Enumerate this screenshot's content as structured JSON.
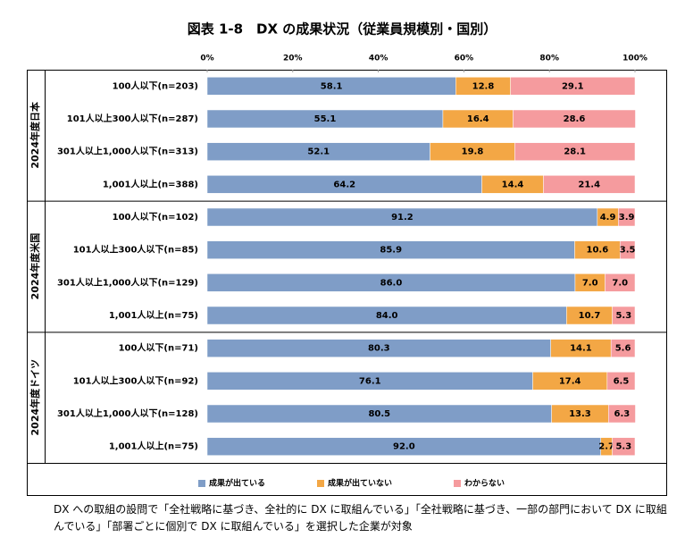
{
  "chart_data": {
    "type": "stacked-barh",
    "title": "図表 1-8　DX の成果状況（従業員規模別・国別）",
    "groups": [
      "2024年度日本",
      "2024年度米国",
      "2024年度ドイツ"
    ],
    "categories": [
      "100人以下(n=203)",
      "101人以上300人以下(n=287)",
      "301人以上1,000人以下(n=313)",
      "1,001人以上(n=388)",
      "100人以下(n=102)",
      "101人以上300人以下(n=85)",
      "301人以上1,000人以下(n=129)",
      "1,001人以上(n=75)",
      "100人以下(n=71)",
      "101人以上300人以下(n=92)",
      "301人以上1,000人以下(n=128)",
      "1,001人以上(n=75)"
    ],
    "series": [
      {
        "name": "成果が出ている",
        "color": "#7f9dc7",
        "values": [
          58.1,
          55.1,
          52.1,
          64.2,
          91.2,
          85.9,
          86.0,
          84.0,
          80.3,
          76.1,
          80.5,
          92.0
        ],
        "value_labels": [
          "58.1",
          "55.1",
          "52.1",
          "64.2",
          "91.2",
          "85.9",
          "86.0",
          "84.0",
          "80.3",
          "76.1",
          "80.5",
          "92.0"
        ]
      },
      {
        "name": "成果が出ていない",
        "color": "#f3a745",
        "values": [
          12.8,
          16.4,
          19.8,
          14.4,
          4.9,
          10.6,
          7.0,
          10.7,
          14.1,
          17.4,
          13.3,
          2.7
        ],
        "value_labels": [
          "12.8",
          "16.4",
          "19.8",
          "14.4",
          "4.9",
          "10.6",
          "7.0",
          "10.7",
          "14.1",
          "17.4",
          "13.3",
          "2.7"
        ]
      },
      {
        "name": "わからない",
        "color": "#f59b9e",
        "values": [
          29.1,
          28.6,
          28.1,
          21.4,
          3.9,
          3.5,
          7.0,
          5.3,
          5.6,
          6.5,
          6.3,
          5.3
        ],
        "value_labels": [
          "29.1",
          "28.6",
          "28.1",
          "21.4",
          "3.9",
          "3.5",
          "7.0",
          "5.3",
          "5.6",
          "6.5",
          "6.3",
          "5.3"
        ]
      }
    ],
    "xlim": [
      0,
      100
    ],
    "xticks": [
      {
        "value": 0,
        "label": "0%"
      },
      {
        "value": 20,
        "label": "20%"
      },
      {
        "value": 40,
        "label": "40%"
      },
      {
        "value": 60,
        "label": "60%"
      },
      {
        "value": 80,
        "label": "80%"
      },
      {
        "value": 100,
        "label": "100%"
      }
    ],
    "note": "DX への取組の設問で「全社戦略に基づき、全社的に DX に取組んでいる」「全社戦略に基づき、一部の部門において DX に取組んでいる」「部署ごとに個別で DX に取組んでいる」を選択した企業が対象"
  }
}
